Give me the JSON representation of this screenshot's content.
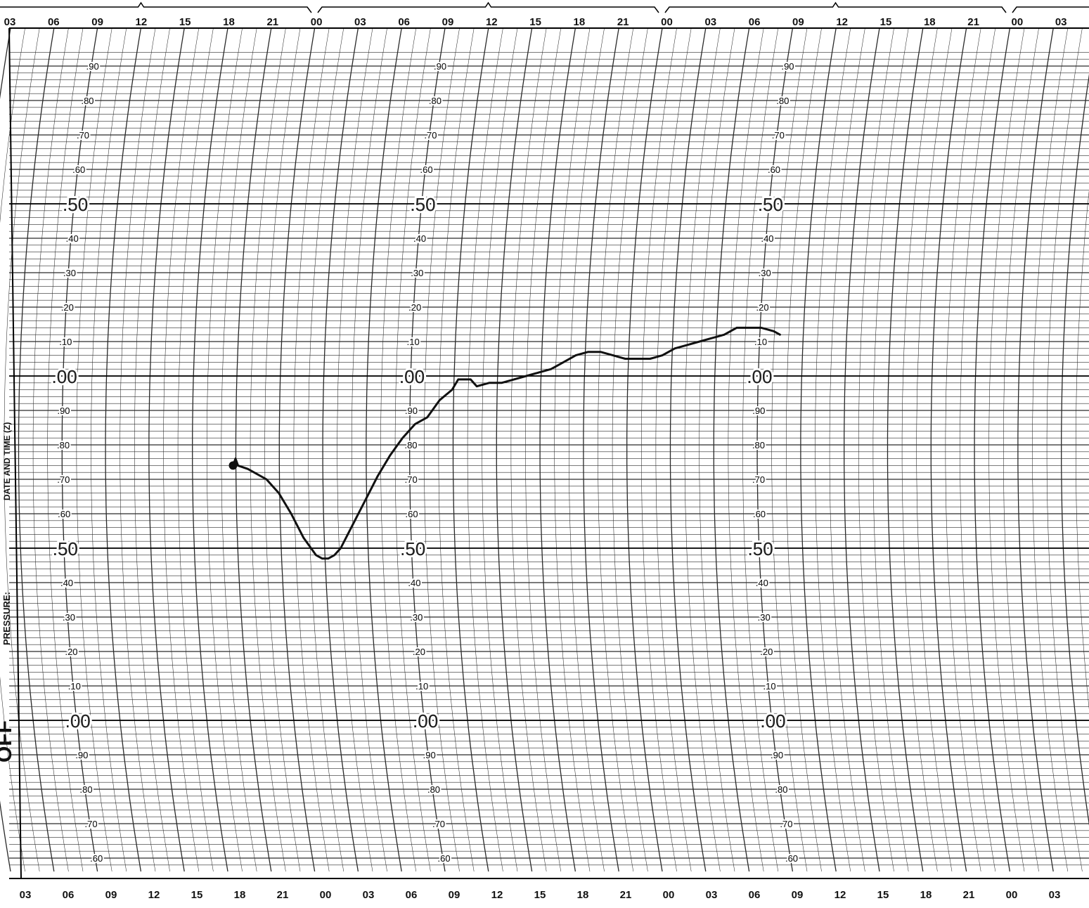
{
  "chart_data": {
    "type": "line",
    "title": "",
    "side_labels": {
      "big": "OFF",
      "pressure": "PRESSURE:",
      "date": "DATE AND TIME (Z)"
    },
    "time_ticks_top": [
      "03",
      "06",
      "09",
      "12",
      "15",
      "18",
      "21",
      "00",
      "03",
      "06",
      "09",
      "12",
      "15",
      "18",
      "21",
      "00",
      "03",
      "06",
      "09",
      "12",
      "15",
      "18",
      "21",
      "00",
      "03"
    ],
    "time_ticks_bottom": [
      "03",
      "06",
      "09",
      "12",
      "15",
      "18",
      "21",
      "00",
      "03",
      "06",
      "09",
      "12",
      "15",
      "18",
      "21",
      "00",
      "03",
      "06",
      "09",
      "12",
      "15",
      "18",
      "21",
      "00",
      "03"
    ],
    "pressure_scale_labels": [
      ".90",
      ".80",
      ".70",
      ".60",
      ".50",
      ".40",
      ".30",
      ".20",
      ".10",
      ".00",
      ".90",
      ".80",
      ".70",
      ".60",
      ".50",
      ".40",
      ".30",
      ".20",
      ".10",
      ".00",
      ".90",
      ".80",
      ".70",
      ".60"
    ],
    "pressure_scale_values": [
      1.9,
      1.8,
      1.7,
      1.6,
      1.5,
      1.4,
      1.3,
      1.2,
      1.1,
      1.0,
      0.9,
      0.8,
      0.7,
      0.6,
      0.5,
      0.4,
      0.3,
      0.2,
      0.1,
      0.0,
      -0.1,
      -0.2,
      -0.3,
      -0.4
    ],
    "x_unit_hours": 3,
    "series": [
      {
        "x": [
          17.3,
          17.5,
          17.7,
          18.5,
          20.0,
          21.0,
          22.0,
          23.0,
          24.0,
          24.5,
          25.0,
          25.5,
          26.0,
          27.0,
          28.0,
          29.0,
          30.0,
          31.0,
          32.0,
          33.0,
          34.0,
          35.0,
          35.5,
          36.5,
          37.0,
          38.0,
          39.0,
          40.0,
          41.0,
          42.0,
          43.0,
          44.0,
          45.0,
          46.0,
          47.0,
          48.0,
          49.0,
          50.0,
          51.0,
          52.0,
          53.0,
          54.0,
          55.0,
          56.0,
          57.0,
          58.0,
          59.0,
          60.0,
          61.0,
          61.5
        ],
        "y": [
          0.74,
          0.76,
          0.74,
          0.73,
          0.7,
          0.66,
          0.6,
          0.53,
          0.48,
          0.47,
          0.47,
          0.48,
          0.5,
          0.57,
          0.64,
          0.71,
          0.77,
          0.82,
          0.86,
          0.88,
          0.93,
          0.96,
          0.99,
          0.99,
          0.97,
          0.98,
          0.98,
          0.99,
          1.0,
          1.01,
          1.02,
          1.04,
          1.06,
          1.07,
          1.07,
          1.06,
          1.05,
          1.05,
          1.05,
          1.06,
          1.08,
          1.09,
          1.1,
          1.11,
          1.12,
          1.14,
          1.14,
          1.14,
          1.13,
          1.12
        ]
      }
    ],
    "grid": true,
    "colors": {
      "paper": "#ffffff",
      "grid": "#2a2a2a",
      "trace": "#111111"
    }
  }
}
